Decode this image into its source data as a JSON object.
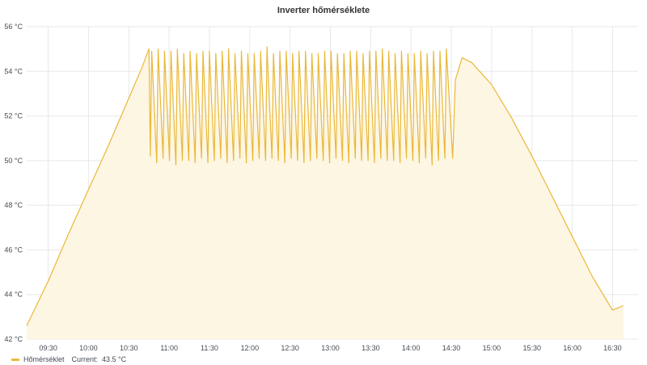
{
  "panel": {
    "title": "Inverter hőmérséklete"
  },
  "colors": {
    "series": "#EAB839",
    "fill": "#fdf6e3",
    "grid": "#e8e8e8",
    "axis_text": "#464c54"
  },
  "legend": {
    "series_name": "Hőmérséklet",
    "current_label": "Current:",
    "current_value": "43.5 °C"
  },
  "chart_data": {
    "type": "area",
    "title": "Inverter hőmérséklete",
    "xlabel": "",
    "ylabel": "",
    "y_unit": "°C",
    "ylim": [
      42,
      56
    ],
    "y_ticks": [
      "42 °C",
      "44 °C",
      "46 °C",
      "48 °C",
      "50 °C",
      "52 °C",
      "54 °C",
      "56 °C"
    ],
    "xlim": [
      "09:14",
      "16:49"
    ],
    "x_ticks": [
      "09:30",
      "10:00",
      "10:30",
      "11:00",
      "11:30",
      "12:00",
      "12:30",
      "13:00",
      "13:30",
      "14:00",
      "14:30",
      "15:00",
      "15:30",
      "16:00",
      "16:30"
    ],
    "grid": true,
    "legend_position": "bottom-left",
    "series": [
      {
        "name": "Hőmérséklet",
        "note_segments": "rise, oscillation, decline",
        "rise": [
          [
            "09:14",
            42.6
          ],
          [
            "09:30",
            44.6
          ],
          [
            "09:45",
            46.7
          ],
          [
            "10:00",
            48.7
          ],
          [
            "10:15",
            50.7
          ],
          [
            "10:30",
            52.8
          ],
          [
            "10:40",
            54.2
          ],
          [
            "10:45",
            55.0
          ]
        ],
        "oscillation": {
          "start": "10:46",
          "end": "14:30",
          "peaks": [
            54.9,
            55.0,
            54.9,
            54.9,
            55.0,
            54.8,
            54.9,
            54.8,
            54.9,
            54.9,
            54.8,
            54.9,
            55.0,
            54.8,
            54.9,
            54.8,
            54.8,
            54.9,
            55.1,
            54.8,
            54.9,
            54.9,
            54.8,
            54.9,
            54.9,
            54.8,
            54.8,
            54.9,
            54.9,
            54.8,
            54.8,
            54.9,
            54.9,
            54.8,
            54.9,
            54.9,
            55.0,
            54.9,
            54.8,
            54.9,
            54.8,
            54.8,
            54.9,
            54.8,
            54.9,
            54.9,
            55.0
          ],
          "troughs": [
            50.2,
            49.9,
            50.1,
            50.0,
            49.8,
            50.0,
            50.0,
            49.9,
            50.1,
            49.9,
            50.0,
            50.1,
            49.9,
            50.0,
            50.1,
            49.9,
            50.0,
            50.1,
            50.0,
            50.1,
            50.0,
            49.9,
            50.1,
            50.0,
            49.9,
            50.0,
            50.1,
            50.0,
            49.9,
            50.1,
            50.0,
            49.9,
            50.1,
            50.0,
            50.0,
            49.9,
            50.1,
            50.0,
            50.0,
            49.9,
            50.1,
            50.0,
            49.9,
            50.1,
            49.8,
            50.0,
            50.1
          ]
        },
        "decline": [
          [
            "14:31",
            50.1
          ],
          [
            "14:33",
            53.6
          ],
          [
            "14:38",
            54.6
          ],
          [
            "14:45",
            54.4
          ],
          [
            "15:00",
            53.4
          ],
          [
            "15:15",
            51.9
          ],
          [
            "15:30",
            50.2
          ],
          [
            "15:45",
            48.4
          ],
          [
            "16:00",
            46.6
          ],
          [
            "16:15",
            44.8
          ],
          [
            "16:30",
            43.3
          ],
          [
            "16:38",
            43.5
          ]
        ]
      }
    ]
  }
}
